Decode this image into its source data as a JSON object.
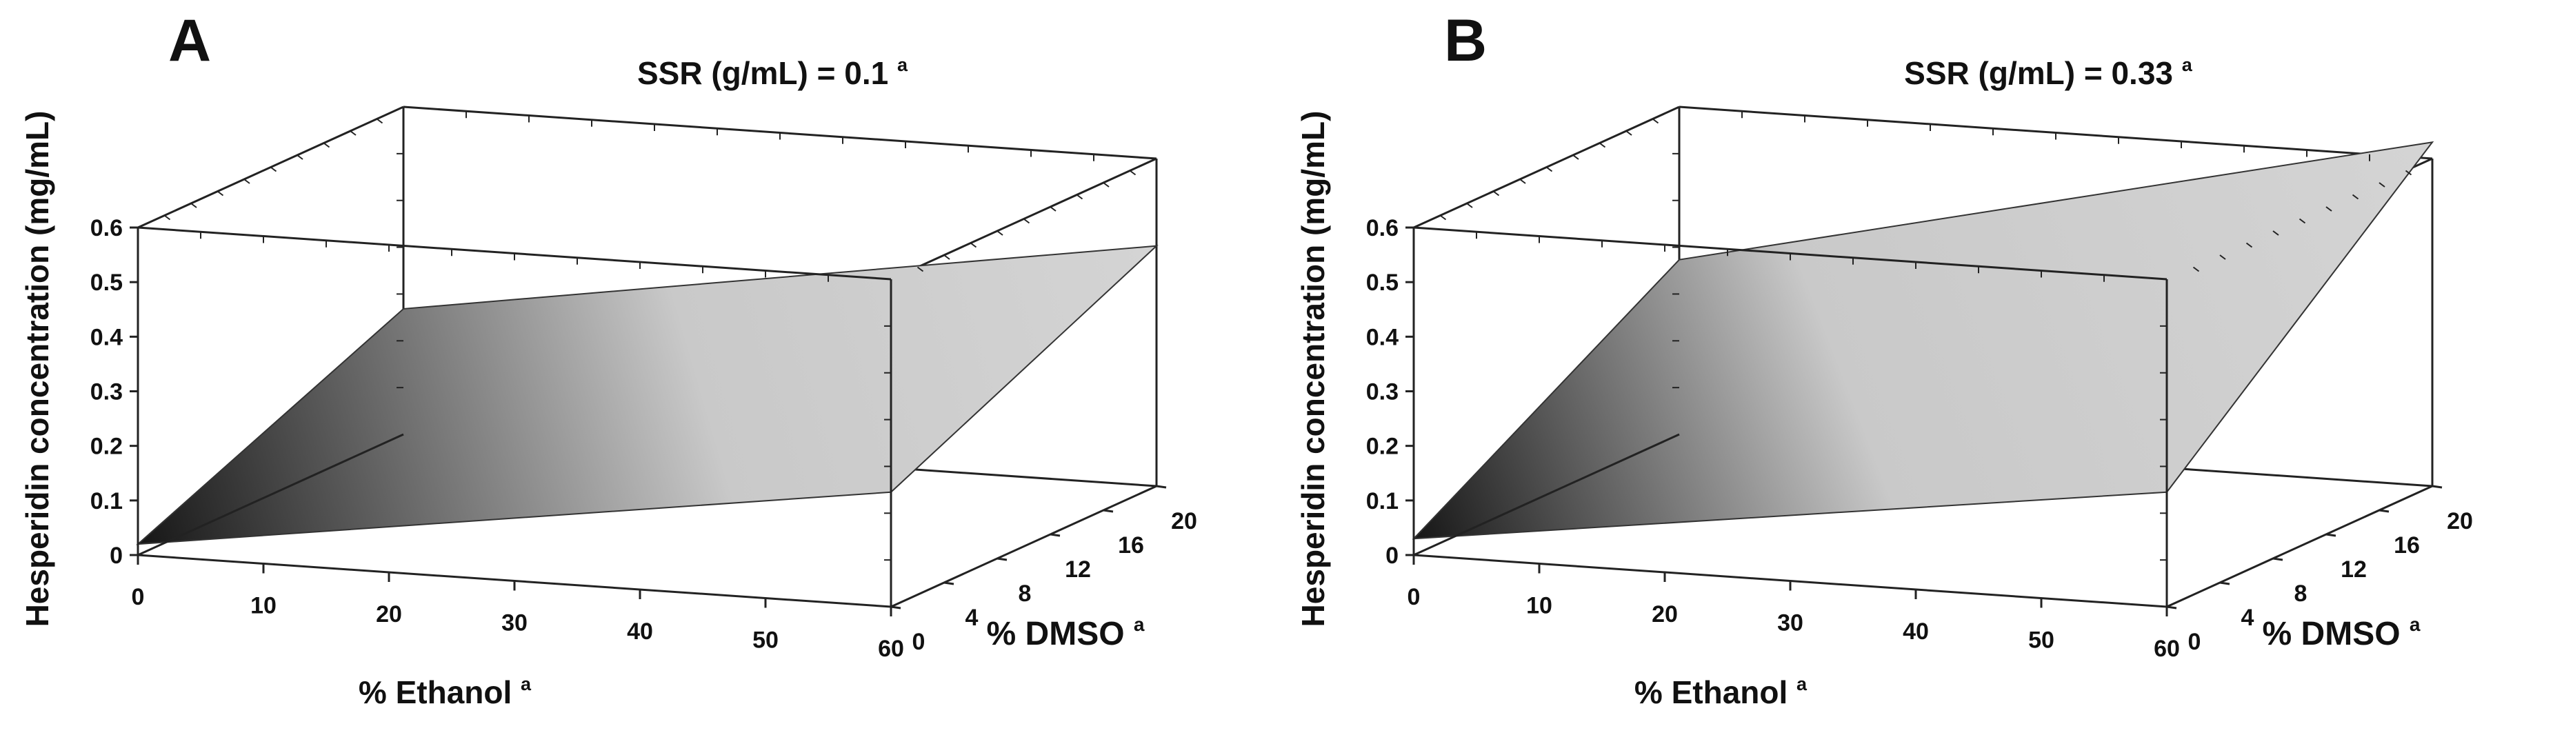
{
  "chart_data": [
    {
      "type": "surface",
      "panel_label": "A",
      "title": "SSR (g/mL) = 0.1",
      "title_superscript": "a",
      "xlabel": "% Ethanol",
      "xlabel_superscript": "a",
      "ylabel": "% DMSO",
      "ylabel_superscript": "a",
      "zlabel": "Hesperidin concentration (mg/mL)",
      "x_ticks": [
        "0",
        "10",
        "20",
        "30",
        "40",
        "50",
        "60"
      ],
      "y_ticks": [
        "0",
        "4",
        "8",
        "12",
        "16",
        "20"
      ],
      "z_ticks": [
        "0",
        "0.1",
        "0.2",
        "0.3",
        "0.4",
        "0.5",
        "0.6"
      ],
      "xlim": [
        0,
        60
      ],
      "ylim": [
        0,
        20
      ],
      "zlim": [
        0,
        0.6
      ],
      "corner_values": [
        {
          "ethanol": 0,
          "dmso": 0,
          "conc": 0.02
        },
        {
          "ethanol": 60,
          "dmso": 0,
          "conc": 0.21
        },
        {
          "ethanol": 0,
          "dmso": 20,
          "conc": 0.23
        },
        {
          "ethanol": 60,
          "dmso": 20,
          "conc": 0.44
        }
      ]
    },
    {
      "type": "surface",
      "panel_label": "B",
      "title": "SSR (g/mL) = 0.33",
      "title_superscript": "a",
      "xlabel": "% Ethanol",
      "xlabel_superscript": "a",
      "ylabel": "% DMSO",
      "ylabel_superscript": "a",
      "zlabel": "Hesperidin concentration (mg/mL)",
      "x_ticks": [
        "0",
        "10",
        "20",
        "30",
        "40",
        "50",
        "60"
      ],
      "y_ticks": [
        "0",
        "4",
        "8",
        "12",
        "16",
        "20"
      ],
      "z_ticks": [
        "0",
        "0.1",
        "0.2",
        "0.3",
        "0.4",
        "0.5",
        "0.6"
      ],
      "xlim": [
        0,
        60
      ],
      "ylim": [
        0,
        20
      ],
      "zlim": [
        0,
        0.6
      ],
      "corner_values": [
        {
          "ethanol": 0,
          "dmso": 0,
          "conc": 0.03
        },
        {
          "ethanol": 60,
          "dmso": 0,
          "conc": 0.21
        },
        {
          "ethanol": 0,
          "dmso": 20,
          "conc": 0.32
        },
        {
          "ethanol": 60,
          "dmso": 20,
          "conc": 0.63
        }
      ]
    }
  ]
}
